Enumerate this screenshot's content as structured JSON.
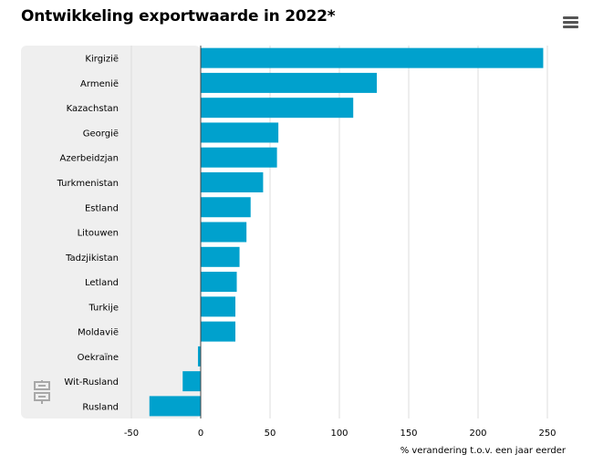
{
  "title": "Ontwikkeling exportwaarde in 2022*",
  "menu": {
    "icon": "hamburger-menu-icon"
  },
  "logo": {
    "icon": "cbs-logo-icon"
  },
  "colors": {
    "bar": "#00a1cd",
    "label_panel": "#efefef",
    "grid": "#dcdcdc",
    "zero_line": "#444444"
  },
  "chart_data": {
    "type": "bar",
    "orientation": "horizontal",
    "title": "Ontwikkeling exportwaarde in 2022*",
    "xlabel": "% verandering t.o.v. een jaar eerder",
    "ylabel": "",
    "categories": [
      "Kirgizië",
      "Armenië",
      "Kazachstan",
      "Georgië",
      "Azerbeidzjan",
      "Turkmenistan",
      "Estland",
      "Litouwen",
      "Tadzjikistan",
      "Letland",
      "Turkije",
      "Moldavië",
      "Oekraïne",
      "Wit-Rusland",
      "Rusland"
    ],
    "values": [
      247,
      127,
      110,
      56,
      55,
      45,
      36,
      33,
      28,
      26,
      25,
      25,
      -2,
      -13,
      -37
    ],
    "xlim": [
      -50,
      250
    ],
    "xticks": [
      -50,
      0,
      50,
      100,
      150,
      200,
      250
    ],
    "grid": true
  }
}
